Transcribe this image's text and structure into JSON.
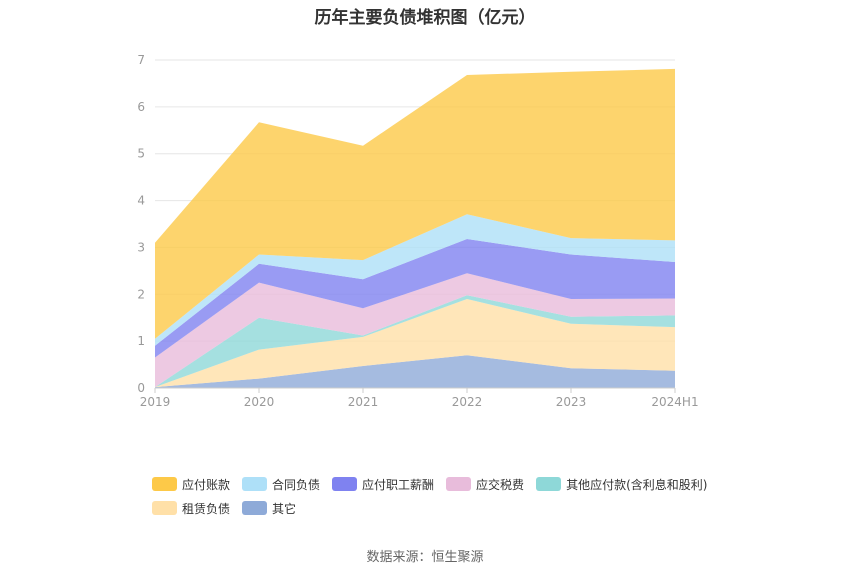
{
  "title": "历年主要负债堆积图（亿元）",
  "source": "数据来源：恒生聚源",
  "chart_data": {
    "type": "area",
    "stacked": true,
    "categories": [
      "2019",
      "2020",
      "2021",
      "2022",
      "2023",
      "2024H1"
    ],
    "ylim": [
      0,
      7
    ],
    "yticks": [
      "0",
      "1",
      "2",
      "3",
      "4",
      "5",
      "6",
      "7"
    ],
    "grid": true,
    "legend_position": "bottom",
    "series": [
      {
        "name": "其它",
        "color": "#8eaad8",
        "values": [
          0.02,
          0.2,
          0.47,
          0.7,
          0.42,
          0.37
        ]
      },
      {
        "name": "租赁负债",
        "color": "#ffe0a8",
        "values": [
          0.0,
          0.62,
          0.62,
          1.2,
          0.95,
          0.93
        ]
      },
      {
        "name": "其他应付款(含利息和股利)",
        "color": "#8ed8d8",
        "values": [
          0.0,
          0.68,
          0.03,
          0.08,
          0.15,
          0.25
        ]
      },
      {
        "name": "应交税费",
        "color": "#e8bcdb",
        "values": [
          0.63,
          0.75,
          0.58,
          0.47,
          0.38,
          0.36
        ]
      },
      {
        "name": "应付职工薪酬",
        "color": "#7f82f0",
        "values": [
          0.25,
          0.4,
          0.62,
          0.73,
          0.95,
          0.78
        ]
      },
      {
        "name": "合同负债",
        "color": "#aee0f8",
        "values": [
          0.15,
          0.2,
          0.41,
          0.53,
          0.35,
          0.46
        ]
      },
      {
        "name": "应付账款",
        "color": "#fdc948",
        "values": [
          2.05,
          2.82,
          2.44,
          2.97,
          3.55,
          3.66
        ]
      }
    ],
    "legend_rows": [
      [
        "应付账款",
        "合同负债",
        "应付职工薪酬",
        "应交税费",
        "其他应付款(含利息和股利)"
      ],
      [
        "租赁负债",
        "其它"
      ]
    ]
  }
}
